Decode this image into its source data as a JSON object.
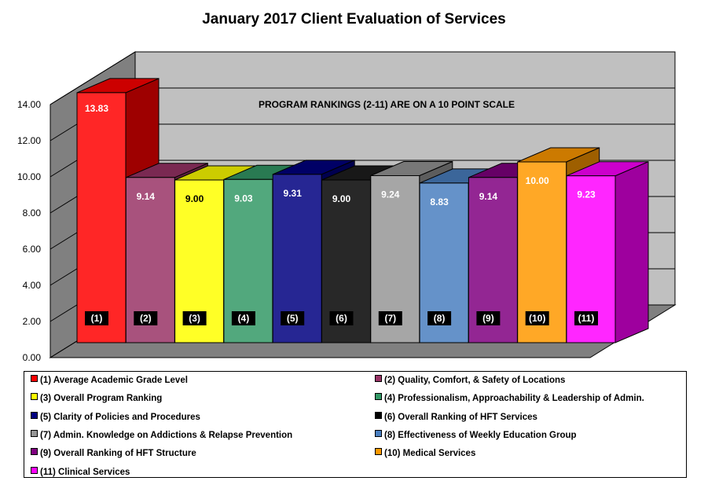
{
  "chart_data": {
    "type": "bar",
    "title": "January 2017 Client Evaluation of Services",
    "annotation": "PROGRAM RANKINGS (2-11) ARE ON A 10 POINT SCALE",
    "ylim": [
      0,
      14
    ],
    "y_ticks": [
      "0.00",
      "2.00",
      "4.00",
      "6.00",
      "8.00",
      "10.00",
      "12.00",
      "14.00"
    ],
    "grid": true,
    "legend_position": "bottom",
    "categories": [
      "(1)",
      "(2)",
      "(3)",
      "(4)",
      "(5)",
      "(6)",
      "(7)",
      "(8)",
      "(9)",
      "(10)",
      "(11)"
    ],
    "values": [
      13.83,
      9.14,
      9.0,
      9.03,
      9.31,
      9.0,
      9.24,
      8.83,
      9.14,
      10.0,
      9.23
    ],
    "value_labels": [
      "13.83",
      "9.14",
      "9.00",
      "9.03",
      "9.31",
      "9.00",
      "9.24",
      "8.83",
      "9.14",
      "10.00",
      "9.23"
    ],
    "series": [
      {
        "name": "(1) Average Academic Grade Level",
        "color": "#ff0000"
      },
      {
        "name": "(2) Quality, Comfort, & Safety of Locations",
        "color": "#993366"
      },
      {
        "name": "(3) Overall Program Ranking",
        "color": "#ffff00"
      },
      {
        "name": "(4) Professionalism, Approachability  & Leadership of Admin.",
        "color": "#339966"
      },
      {
        "name": "(5) Clarity of Policies and Procedures",
        "color": "#000080"
      },
      {
        "name": "(6) Overall Ranking of HFT Services",
        "color": "#000000"
      },
      {
        "name": "(7) Admin. Knowledge on Addictions & Relapse Prevention",
        "color": "#969696"
      },
      {
        "name": "(8) Effectiveness of Weekly Education Group",
        "color": "#4a7fc0"
      },
      {
        "name": "(9) Overall Ranking of HFT Structure",
        "color": "#800080"
      },
      {
        "name": "(10) Medical Services",
        "color": "#ff9900"
      },
      {
        "name": "(11) Clinical Services",
        "color": "#ff00ff"
      }
    ]
  }
}
